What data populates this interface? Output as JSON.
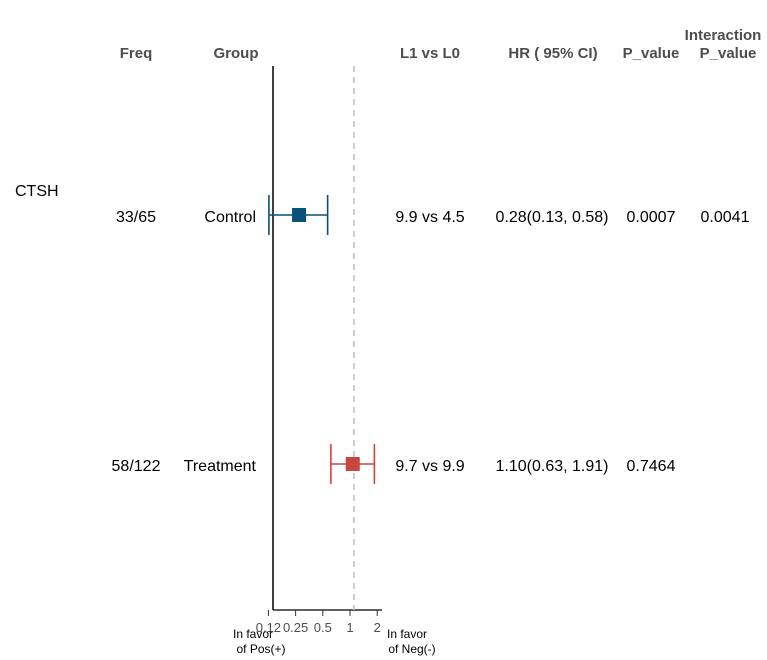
{
  "headers": {
    "freq": "Freq",
    "group": "Group",
    "l1_vs_l0": "L1 vs L0",
    "hr": "HR ( 95% CI)",
    "p_value": "P_value",
    "interaction_line1": "Interaction",
    "interaction_line2": "P_value"
  },
  "variable": "CTSH",
  "rows": [
    {
      "freq": "33/65",
      "group": "Control",
      "l1_vs_l0": "9.9 vs 4.5",
      "hr_text": "0.28(0.13, 0.58)",
      "p_value": "0.0007",
      "interaction_p": "0.0041"
    },
    {
      "freq": "58/122",
      "group": "Treatment",
      "l1_vs_l0": "9.7 vs 9.9",
      "hr_text": "1.10(0.63, 1.91)",
      "p_value": "0.7464",
      "interaction_p": ""
    }
  ],
  "axis": {
    "ticks": [
      "0.12",
      "0.25",
      "0.5",
      "1",
      "2"
    ],
    "favor_left_line1": "In favor",
    "favor_left_line2": "of Pos(+)",
    "favor_right_line1": "In favor",
    "favor_right_line2": "of Neg(-)"
  },
  "chart_data": {
    "type": "scatter",
    "scale": "log2",
    "xlim": [
      0.12,
      2.4
    ],
    "reference_line": 1,
    "tick_values": [
      0.125,
      0.25,
      0.5,
      1,
      2
    ],
    "series": [
      {
        "label": "Control",
        "estimate": 0.28,
        "lower": 0.13,
        "upper": 0.58,
        "color": "#0b4f7c"
      },
      {
        "label": "Treatment",
        "estimate": 1.1,
        "lower": 0.63,
        "upper": 1.91,
        "color": "#c8473d"
      }
    ]
  }
}
